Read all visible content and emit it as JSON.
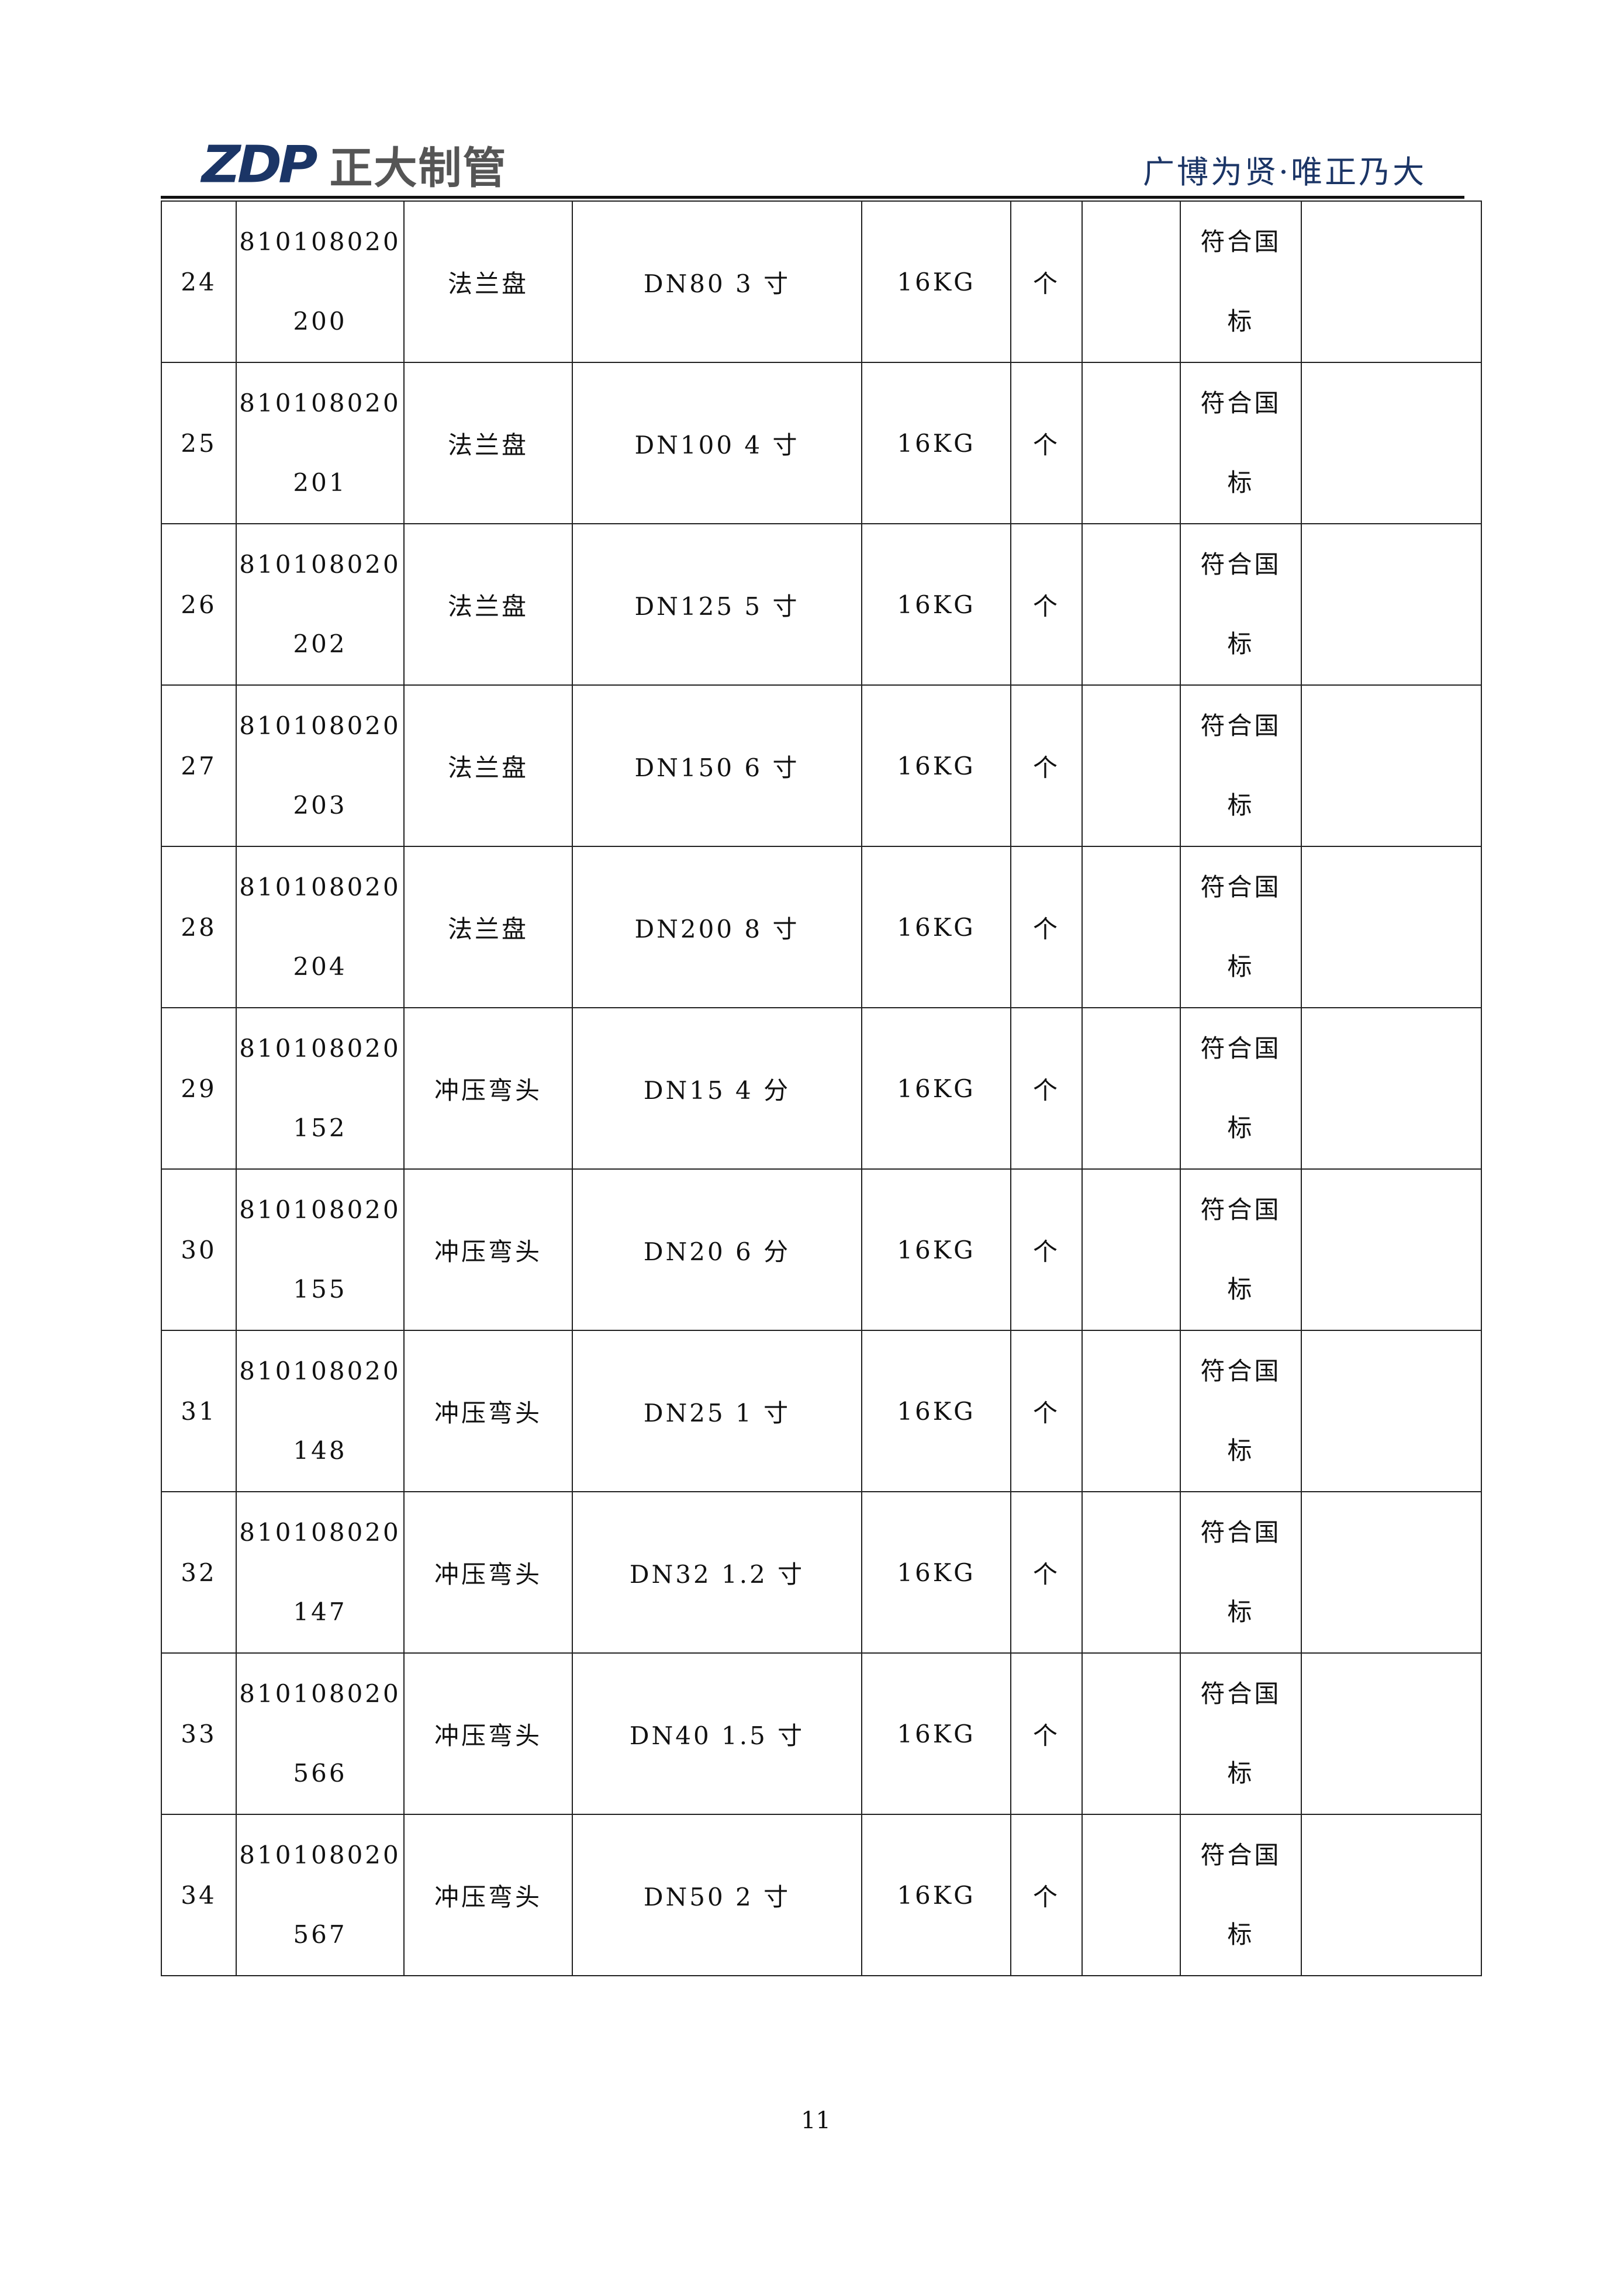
{
  "header": {
    "logo_mark": "ZDP",
    "logo_name": "正大制管",
    "slogan": "广博为贤·唯正乃大",
    "brand_color": "#1b3566"
  },
  "rows": [
    {
      "no": "24",
      "code1": "810108020",
      "code2": "200",
      "name": "法兰盘",
      "spec": "DN80  3 寸",
      "weight": "16KG",
      "unit": "个",
      "qty": "",
      "std1": "符合国",
      "std2": "标",
      "note": ""
    },
    {
      "no": "25",
      "code1": "810108020",
      "code2": "201",
      "name": "法兰盘",
      "spec": "DN100  4 寸",
      "weight": "16KG",
      "unit": "个",
      "qty": "",
      "std1": "符合国",
      "std2": "标",
      "note": ""
    },
    {
      "no": "26",
      "code1": "810108020",
      "code2": "202",
      "name": "法兰盘",
      "spec": "DN125  5 寸",
      "weight": "16KG",
      "unit": "个",
      "qty": "",
      "std1": "符合国",
      "std2": "标",
      "note": ""
    },
    {
      "no": "27",
      "code1": "810108020",
      "code2": "203",
      "name": "法兰盘",
      "spec": "DN150  6 寸",
      "weight": "16KG",
      "unit": "个",
      "qty": "",
      "std1": "符合国",
      "std2": "标",
      "note": ""
    },
    {
      "no": "28",
      "code1": "810108020",
      "code2": "204",
      "name": "法兰盘",
      "spec": "DN200  8 寸",
      "weight": "16KG",
      "unit": "个",
      "qty": "",
      "std1": "符合国",
      "std2": "标",
      "note": ""
    },
    {
      "no": "29",
      "code1": "810108020",
      "code2": "152",
      "name": "冲压弯头",
      "spec": "DN15  4 分",
      "weight": "16KG",
      "unit": "个",
      "qty": "",
      "std1": "符合国",
      "std2": "标",
      "note": ""
    },
    {
      "no": "30",
      "code1": "810108020",
      "code2": "155",
      "name": "冲压弯头",
      "spec": "DN20  6 分",
      "weight": "16KG",
      "unit": "个",
      "qty": "",
      "std1": "符合国",
      "std2": "标",
      "note": ""
    },
    {
      "no": "31",
      "code1": "810108020",
      "code2": "148",
      "name": "冲压弯头",
      "spec": "DN25  1 寸",
      "weight": "16KG",
      "unit": "个",
      "qty": "",
      "std1": "符合国",
      "std2": "标",
      "note": ""
    },
    {
      "no": "32",
      "code1": "810108020",
      "code2": "147",
      "name": "冲压弯头",
      "spec": "DN32  1.2 寸",
      "weight": "16KG",
      "unit": "个",
      "qty": "",
      "std1": "符合国",
      "std2": "标",
      "note": ""
    },
    {
      "no": "33",
      "code1": "810108020",
      "code2": "566",
      "name": "冲压弯头",
      "spec": "DN40  1.5 寸",
      "weight": "16KG",
      "unit": "个",
      "qty": "",
      "std1": "符合国",
      "std2": "标",
      "note": ""
    },
    {
      "no": "34",
      "code1": "810108020",
      "code2": "567",
      "name": "冲压弯头",
      "spec": "DN50  2 寸",
      "weight": "16KG",
      "unit": "个",
      "qty": "",
      "std1": "符合国",
      "std2": "标",
      "note": ""
    }
  ],
  "footer": {
    "page_number": "11"
  }
}
